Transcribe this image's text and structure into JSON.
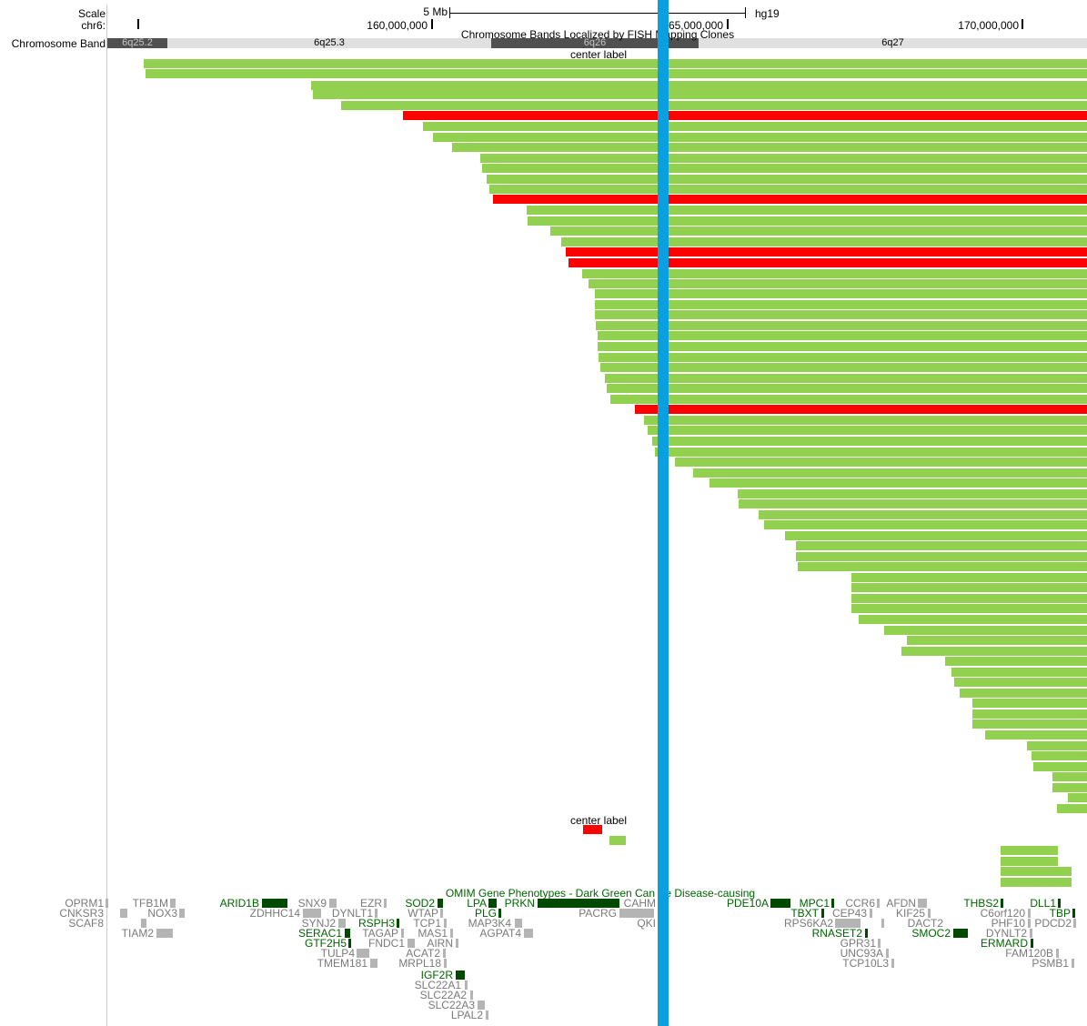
{
  "colors": {
    "clone_green": "#92d050",
    "clone_red": "#ff0000",
    "highlight_blue": "#0aa0e0",
    "band_light": "#e0e0e0",
    "band_dark": "#505050",
    "gene_dark_green": "#004a00",
    "gene_gray": "#b4b4b4",
    "cursor_line": "#ffb4b4"
  },
  "header": {
    "scale_label": "Scale",
    "chrom_label": "chr6:",
    "scale_bar_text": "5 Mb",
    "assembly": "hg19",
    "positions": [
      "160,000,000",
      "165,000,000",
      "170,000,000"
    ],
    "band_track_label": "Chromosome Band"
  },
  "bands": [
    {
      "name": "6q25.2",
      "shade": "dark"
    },
    {
      "name": "6q25.3",
      "shade": "light"
    },
    {
      "name": "6q26",
      "shade": "dark"
    },
    {
      "name": "6q27",
      "shade": "light"
    }
  ],
  "fish_track": {
    "title": "Chromosome Bands Localized by FISH Mapping Clones",
    "center_label": "center label",
    "center_label_2": "center label"
  },
  "omim_track": {
    "title": "OMIM Gene Phenotypes - Dark Green Can Be Disease-causing",
    "genes": [
      {
        "name": "OPRM1",
        "type": "gray"
      },
      {
        "name": "TFB1M",
        "type": "gray"
      },
      {
        "name": "ARID1B",
        "type": "dark"
      },
      {
        "name": "SNX9",
        "type": "gray"
      },
      {
        "name": "EZR",
        "type": "gray"
      },
      {
        "name": "SOD2",
        "type": "dark"
      },
      {
        "name": "LPA",
        "type": "dark"
      },
      {
        "name": "PRKN",
        "type": "dark"
      },
      {
        "name": "CAHM",
        "type": "gray"
      },
      {
        "name": "PDE10A",
        "type": "dark"
      },
      {
        "name": "MPC1",
        "type": "dark"
      },
      {
        "name": "CCR6",
        "type": "gray"
      },
      {
        "name": "AFDN",
        "type": "gray"
      },
      {
        "name": "THBS2",
        "type": "dark"
      },
      {
        "name": "DLL1",
        "type": "dark"
      },
      {
        "name": "CNKSR3",
        "type": "gray"
      },
      {
        "name": "NOX3",
        "type": "gray"
      },
      {
        "name": "ZDHHC14",
        "type": "gray"
      },
      {
        "name": "DYNLT1",
        "type": "gray"
      },
      {
        "name": "WTAP",
        "type": "gray"
      },
      {
        "name": "PLG",
        "type": "dark"
      },
      {
        "name": "PACRG",
        "type": "gray"
      },
      {
        "name": "TBXT",
        "type": "dark"
      },
      {
        "name": "CEP43",
        "type": "gray"
      },
      {
        "name": "KIF25",
        "type": "gray"
      },
      {
        "name": "C6orf120",
        "type": "gray"
      },
      {
        "name": "TBP",
        "type": "dark"
      },
      {
        "name": "SCAF8",
        "type": "gray"
      },
      {
        "name": "SYNJ2",
        "type": "gray"
      },
      {
        "name": "RSPH3",
        "type": "dark"
      },
      {
        "name": "TCP1",
        "type": "gray"
      },
      {
        "name": "MAP3K4",
        "type": "gray"
      },
      {
        "name": "QKI",
        "type": "gray"
      },
      {
        "name": "RPS6KA2",
        "type": "gray"
      },
      {
        "name": "DACT2",
        "type": "gray"
      },
      {
        "name": "PHF10",
        "type": "gray"
      },
      {
        "name": "PDCD2",
        "type": "gray"
      },
      {
        "name": "TIAM2",
        "type": "gray"
      },
      {
        "name": "SERAC1",
        "type": "dark"
      },
      {
        "name": "TAGAP",
        "type": "gray"
      },
      {
        "name": "MAS1",
        "type": "gray"
      },
      {
        "name": "AGPAT4",
        "type": "gray"
      },
      {
        "name": "RNASET2",
        "type": "dark"
      },
      {
        "name": "SMOC2",
        "type": "dark"
      },
      {
        "name": "DYNLT2",
        "type": "gray"
      },
      {
        "name": "GTF2H5",
        "type": "dark"
      },
      {
        "name": "FNDC1",
        "type": "gray"
      },
      {
        "name": "AIRN",
        "type": "gray"
      },
      {
        "name": "GPR31",
        "type": "gray"
      },
      {
        "name": "ERMARD",
        "type": "dark"
      },
      {
        "name": "TULP4",
        "type": "gray"
      },
      {
        "name": "ACAT2",
        "type": "gray"
      },
      {
        "name": "UNC93A",
        "type": "gray"
      },
      {
        "name": "FAM120B",
        "type": "gray"
      },
      {
        "name": "TMEM181",
        "type": "gray"
      },
      {
        "name": "MRPL18",
        "type": "gray"
      },
      {
        "name": "TCP10L3",
        "type": "gray"
      },
      {
        "name": "PSMB1",
        "type": "gray"
      },
      {
        "name": "IGF2R",
        "type": "dark"
      },
      {
        "name": "SLC22A1",
        "type": "gray"
      },
      {
        "name": "SLC22A2",
        "type": "gray"
      },
      {
        "name": "SLC22A3",
        "type": "gray"
      },
      {
        "name": "LPAL2",
        "type": "gray"
      }
    ]
  }
}
